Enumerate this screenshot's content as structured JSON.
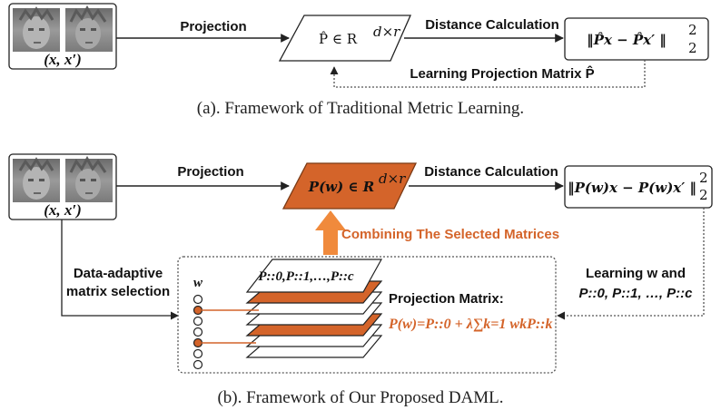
{
  "colors": {
    "accent": "#d4642a",
    "stroke": "#222222",
    "dotted": "#555555"
  },
  "top": {
    "pair_label": "(x,  x′)",
    "projection_label": "Projection",
    "matrix_label_hat": "P̂ ∈ R",
    "matrix_sup": "d×r",
    "distance_label": "Distance Calculation",
    "distance_formula": "‖P̂x − P̂x′ ‖",
    "distance_sup": "2",
    "distance_sub": "2",
    "learning_label": "Learning Projection Matrix  P̂",
    "caption": "(a). Framework of Traditional Metric Learning."
  },
  "bottom": {
    "pair_label": "(x,  x′)",
    "projection_label": "Projection",
    "matrix_label": "P(w) ∈ R",
    "matrix_sup": "d×r",
    "distance_label": "Distance Calculation",
    "distance_formula": "‖P(w)x − P(w)x′ ‖",
    "distance_sup": "2",
    "distance_sub": "2",
    "combine_label": "Combining The Selected Matrices",
    "selection_label_1": "Data-adaptive",
    "selection_label_2": "matrix selection",
    "w_label": "w",
    "stack_top_label": "P::0,P::1,…,P::c",
    "proj_matrix_title": "Projection Matrix:",
    "proj_matrix_formula": "P(w)=P::0 + λ∑k=1 wkP::k",
    "learning_label_1": "Learning w and",
    "learning_label_2": "P::0, P::1, …, P::c",
    "caption": "(b). Framework of Our Proposed DAML."
  }
}
